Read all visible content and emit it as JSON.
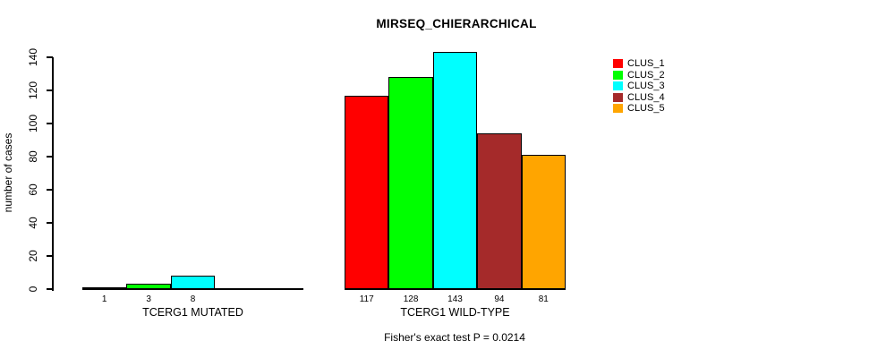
{
  "chart_data": {
    "type": "bar",
    "title": "MIRSEQ_CHIERARCHICAL",
    "ylabel": "number of cases",
    "ylim": [
      0,
      140
    ],
    "yticks": [
      0,
      20,
      40,
      60,
      80,
      100,
      120,
      140
    ],
    "grid": false,
    "annotation": "Fisher's exact test P = 0.0214",
    "categories": [
      "TCERG1 MUTATED",
      "TCERG1 WILD-TYPE"
    ],
    "series": [
      {
        "name": "CLUS_1",
        "color": "#FF0000",
        "values": [
          1,
          117
        ]
      },
      {
        "name": "CLUS_2",
        "color": "#00FF00",
        "values": [
          3,
          128
        ]
      },
      {
        "name": "CLUS_3",
        "color": "#00FFFF",
        "values": [
          8,
          143
        ]
      },
      {
        "name": "CLUS_4",
        "color": "#A52A2A",
        "values": [
          0,
          94
        ]
      },
      {
        "name": "CLUS_5",
        "color": "#FFA500",
        "values": [
          0,
          81
        ]
      }
    ],
    "bar_labels": [
      [
        "1",
        "3",
        "8",
        "",
        ""
      ],
      [
        "117",
        "128",
        "143",
        "94",
        "81"
      ]
    ],
    "legend": {
      "position": "right",
      "entries": [
        "CLUS_1",
        "CLUS_2",
        "CLUS_3",
        "CLUS_4",
        "CLUS_5"
      ]
    }
  }
}
